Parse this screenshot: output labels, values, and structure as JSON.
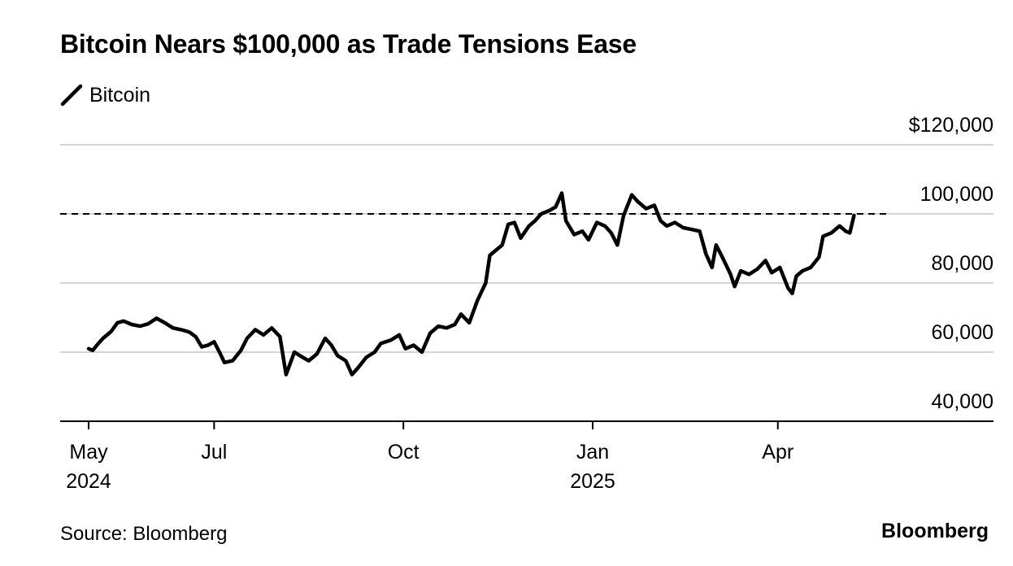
{
  "chart_data": {
    "type": "line",
    "title": "Bitcoin Nears $100,000 as Trade Tensions Ease",
    "series": [
      {
        "name": "Bitcoin",
        "color": "#000000",
        "points": [
          [
            "2024-05-01",
            61000
          ],
          [
            "2024-05-03",
            60500
          ],
          [
            "2024-05-05",
            62000
          ],
          [
            "2024-05-08",
            64000
          ],
          [
            "2024-05-12",
            66000
          ],
          [
            "2024-05-15",
            68500
          ],
          [
            "2024-05-18",
            69000
          ],
          [
            "2024-05-22",
            68000
          ],
          [
            "2024-05-26",
            67500
          ],
          [
            "2024-05-30",
            68200
          ],
          [
            "2024-06-03",
            69800
          ],
          [
            "2024-06-07",
            68500
          ],
          [
            "2024-06-11",
            67000
          ],
          [
            "2024-06-15",
            66500
          ],
          [
            "2024-06-19",
            65800
          ],
          [
            "2024-06-22",
            64500
          ],
          [
            "2024-06-25",
            61500
          ],
          [
            "2024-06-28",
            62000
          ],
          [
            "2024-07-01",
            63000
          ],
          [
            "2024-07-04",
            59500
          ],
          [
            "2024-07-06",
            57000
          ],
          [
            "2024-07-10",
            57500
          ],
          [
            "2024-07-14",
            60500
          ],
          [
            "2024-07-17",
            64000
          ],
          [
            "2024-07-21",
            66500
          ],
          [
            "2024-07-25",
            65000
          ],
          [
            "2024-07-29",
            67000
          ],
          [
            "2024-08-02",
            64500
          ],
          [
            "2024-08-05",
            53500
          ],
          [
            "2024-08-09",
            60000
          ],
          [
            "2024-08-13",
            58500
          ],
          [
            "2024-08-16",
            57500
          ],
          [
            "2024-08-20",
            59500
          ],
          [
            "2024-08-24",
            64000
          ],
          [
            "2024-08-27",
            62000
          ],
          [
            "2024-08-30",
            59000
          ],
          [
            "2024-09-03",
            57500
          ],
          [
            "2024-09-06",
            53500
          ],
          [
            "2024-09-09",
            55500
          ],
          [
            "2024-09-13",
            58500
          ],
          [
            "2024-09-17",
            60000
          ],
          [
            "2024-09-20",
            62500
          ],
          [
            "2024-09-25",
            63500
          ],
          [
            "2024-09-29",
            65000
          ],
          [
            "2024-10-02",
            61000
          ],
          [
            "2024-10-06",
            62000
          ],
          [
            "2024-10-10",
            60000
          ],
          [
            "2024-10-14",
            65500
          ],
          [
            "2024-10-18",
            67500
          ],
          [
            "2024-10-22",
            67000
          ],
          [
            "2024-10-26",
            68000
          ],
          [
            "2024-10-29",
            71000
          ],
          [
            "2024-11-02",
            68500
          ],
          [
            "2024-11-06",
            75000
          ],
          [
            "2024-11-10",
            80000
          ],
          [
            "2024-11-12",
            88000
          ],
          [
            "2024-11-15",
            89500
          ],
          [
            "2024-11-18",
            91000
          ],
          [
            "2024-11-21",
            97000
          ],
          [
            "2024-11-24",
            97500
          ],
          [
            "2024-11-27",
            93000
          ],
          [
            "2024-12-01",
            96500
          ],
          [
            "2024-12-04",
            98000
          ],
          [
            "2024-12-07",
            100000
          ],
          [
            "2024-12-11",
            101000
          ],
          [
            "2024-12-14",
            102000
          ],
          [
            "2024-12-17",
            106000
          ],
          [
            "2024-12-19",
            98000
          ],
          [
            "2024-12-23",
            94000
          ],
          [
            "2024-12-27",
            95000
          ],
          [
            "2024-12-30",
            92500
          ],
          [
            "2025-01-03",
            97500
          ],
          [
            "2025-01-07",
            96500
          ],
          [
            "2025-01-10",
            94500
          ],
          [
            "2025-01-13",
            91000
          ],
          [
            "2025-01-16",
            99500
          ],
          [
            "2025-01-20",
            105500
          ],
          [
            "2025-01-23",
            103500
          ],
          [
            "2025-01-27",
            101500
          ],
          [
            "2025-01-31",
            102500
          ],
          [
            "2025-02-03",
            98000
          ],
          [
            "2025-02-06",
            96500
          ],
          [
            "2025-02-10",
            97500
          ],
          [
            "2025-02-14",
            96000
          ],
          [
            "2025-02-18",
            95500
          ],
          [
            "2025-02-22",
            95000
          ],
          [
            "2025-02-25",
            88500
          ],
          [
            "2025-02-28",
            84500
          ],
          [
            "2025-03-02",
            91000
          ],
          [
            "2025-03-05",
            87500
          ],
          [
            "2025-03-09",
            82500
          ],
          [
            "2025-03-11",
            79000
          ],
          [
            "2025-03-14",
            83500
          ],
          [
            "2025-03-18",
            82500
          ],
          [
            "2025-03-22",
            84000
          ],
          [
            "2025-03-26",
            86500
          ],
          [
            "2025-03-29",
            83000
          ],
          [
            "2025-04-02",
            84500
          ],
          [
            "2025-04-06",
            78500
          ],
          [
            "2025-04-08",
            77000
          ],
          [
            "2025-04-10",
            82000
          ],
          [
            "2025-04-13",
            83500
          ],
          [
            "2025-04-17",
            84500
          ],
          [
            "2025-04-21",
            87500
          ],
          [
            "2025-04-23",
            93500
          ],
          [
            "2025-04-27",
            94500
          ],
          [
            "2025-05-01",
            96500
          ],
          [
            "2025-05-04",
            95000
          ],
          [
            "2025-05-06",
            94500
          ],
          [
            "2025-05-08",
            99500
          ]
        ]
      }
    ],
    "reference_line": {
      "value": 100000,
      "style": "dashed"
    },
    "x_range": [
      "2024-05-01",
      "2025-05-31"
    ],
    "y_range": [
      40000,
      120000
    ],
    "y_ticks": [
      {
        "value": 120000,
        "label": "$120,000"
      },
      {
        "value": 100000,
        "label": "100,000"
      },
      {
        "value": 80000,
        "label": "80,000"
      },
      {
        "value": 60000,
        "label": "60,000"
      },
      {
        "value": 40000,
        "label": "40,000"
      }
    ],
    "x_ticks": [
      {
        "date": "2024-05-01",
        "label": "May",
        "sublabel": "2024"
      },
      {
        "date": "2024-07-01",
        "label": "Jul",
        "sublabel": ""
      },
      {
        "date": "2024-10-01",
        "label": "Oct",
        "sublabel": ""
      },
      {
        "date": "2025-01-01",
        "label": "Jan",
        "sublabel": "2025"
      },
      {
        "date": "2025-04-01",
        "label": "Apr",
        "sublabel": ""
      }
    ],
    "grid": "horizontal",
    "legend_position": "top-left"
  },
  "legend": {
    "label": "Bitcoin"
  },
  "footer": {
    "source": "Source: Bloomberg",
    "brand": "Bloomberg"
  }
}
